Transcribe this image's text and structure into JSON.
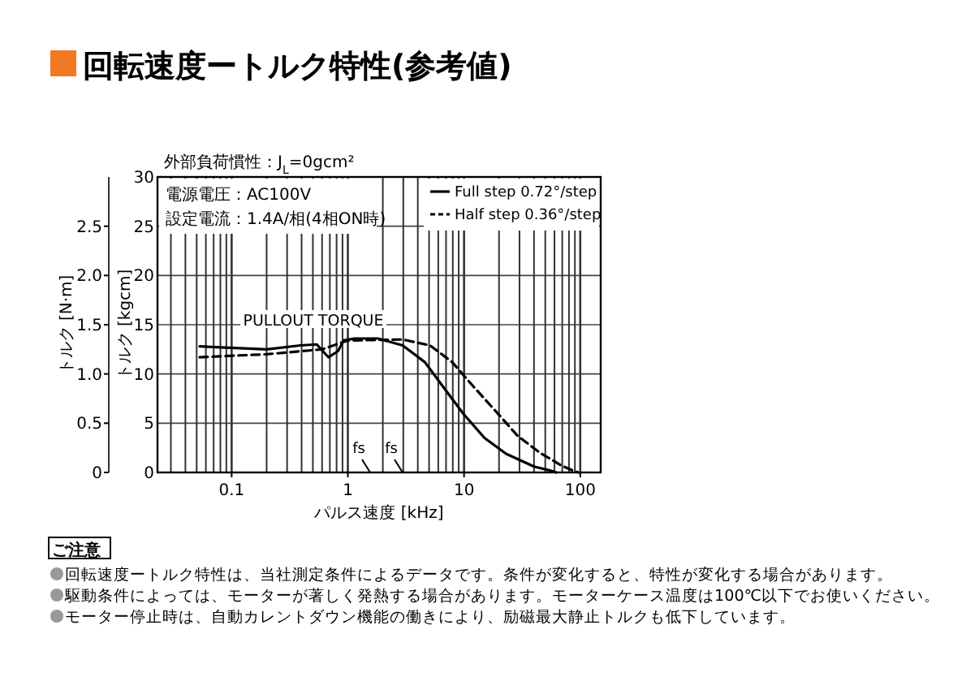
{
  "chart_data": {
    "type": "line",
    "title": "回転速度ートルク特性(参考値)",
    "xlabel": "パルス速度 [kHz]",
    "ylabel": "トルク [kgcm]",
    "y2label": "トルク [N·m]",
    "log": "x",
    "xlim": [
      0.023,
      150
    ],
    "xticks": [
      0.1,
      1,
      10,
      100
    ],
    "ylim": [
      0,
      30
    ],
    "yticks": [
      0,
      5,
      10,
      15,
      20,
      25,
      30
    ],
    "y2lim": [
      0,
      3
    ],
    "y2ticks": [
      0,
      0.5,
      {
        "value": 1,
        "label": "1.0"
      },
      1.5,
      {
        "value": 2,
        "label": "2.0"
      },
      2.5
    ],
    "grid": true,
    "legend": "top right",
    "series": [
      {
        "name": "Full step 0.72°/step",
        "color": "#000000",
        "line_style": "solid",
        "x": [
          0.053,
          0.2,
          0.39,
          0.54,
          0.68,
          0.82,
          0.92,
          1.14,
          1.82,
          2.96,
          4.6,
          7.1,
          9.8,
          15,
          23,
          40,
          55,
          62
        ],
        "values": [
          12.8,
          12.5,
          12.9,
          13.0,
          11.7,
          12.3,
          13.4,
          13.6,
          13.6,
          12.9,
          11.2,
          8.2,
          6.0,
          3.5,
          1.9,
          0.6,
          0.2,
          0
        ]
      },
      {
        "name": "Half step 0.36°/step",
        "color": "#000000",
        "line_style": "dashed",
        "x": [
          0.053,
          0.2,
          0.6,
          1.0,
          2.96,
          5.1,
          7.9,
          12.1,
          18.8,
          29,
          45,
          69,
          86,
          96
        ],
        "values": [
          11.7,
          12.0,
          12.5,
          13.4,
          13.5,
          12.9,
          11.2,
          8.7,
          6.2,
          3.7,
          2.0,
          0.7,
          0.2,
          0
        ]
      }
    ],
    "annotations": [
      "外部負荷慣性：J$_{L}$=0gcm²",
      "電源電圧：AC100V",
      "設定電流：1.4A/相(4相ON時)",
      "PULLOUT TORQUE",
      "fs",
      "fs",
      "ご注意",
      "回転速度ートルク特性は、当社測定条件によるデータです。条件が変化すると、特性が変化する場合があります。",
      "駆動条件によっては、モーターが著しく発熱する場合があります。モーターケース温度は100℃以下でお使いください。",
      "モーター停止時は、自動カレントダウン機能の働きにより、励磁最大静止トルクも低下しています。"
    ]
  }
}
